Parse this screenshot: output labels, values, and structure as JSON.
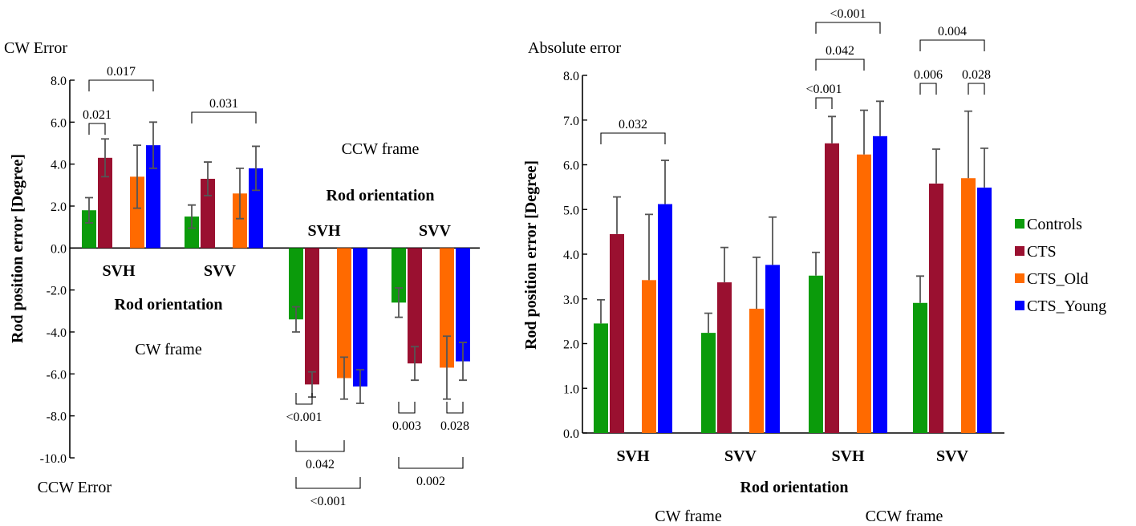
{
  "legend": [
    {
      "name": "Controls",
      "color": "#0b9b0b"
    },
    {
      "name": "CTS",
      "color": "#9a1030"
    },
    {
      "name": "CTS_Old",
      "color": "#ff6a00"
    },
    {
      "name": "CTS_Young",
      "color": "#0000ff"
    }
  ],
  "chart_data": [
    {
      "type": "bar",
      "corner_labels": {
        "top": "CW Error",
        "bottom": "CCW Error"
      },
      "ylabel": "Rod position error  [Degree]",
      "ylim": [
        -10,
        8
      ],
      "yticks": [
        "8.0",
        "6.0",
        "4.0",
        "2.0",
        "0.0",
        "-2.0",
        "-4.0",
        "-6.0",
        "-8.0",
        "-10.0"
      ],
      "frames": [
        {
          "frame": "CW frame",
          "axis_title": "Rod orientation"
        },
        {
          "frame": "CCW frame",
          "axis_title": "Rod orientation"
        }
      ],
      "groups": [
        {
          "label": "SVH",
          "values": [
            1.8,
            4.3,
            3.4,
            4.9
          ],
          "errors": [
            0.6,
            0.9,
            1.5,
            1.1
          ]
        },
        {
          "label": "SVV",
          "values": [
            1.5,
            3.3,
            2.6,
            3.8
          ],
          "errors": [
            0.55,
            0.8,
            1.2,
            1.05
          ]
        },
        {
          "label": "SVH",
          "values": [
            -3.4,
            -6.5,
            -6.2,
            -6.6
          ],
          "errors": [
            0.6,
            0.6,
            1.0,
            0.8
          ]
        },
        {
          "label": "SVV",
          "values": [
            -2.6,
            -5.5,
            -5.7,
            -5.4
          ],
          "errors": [
            0.7,
            0.8,
            1.5,
            0.9
          ]
        }
      ],
      "significance": [
        {
          "group": 0,
          "from": 0,
          "to": 1,
          "p": "0.021"
        },
        {
          "group": 0,
          "from": 0,
          "to": 3,
          "p": "0.017"
        },
        {
          "group": 1,
          "from": 0,
          "to": 3,
          "p": "0.031"
        },
        {
          "group": 2,
          "from": 0,
          "to": 1,
          "p": "<0.001"
        },
        {
          "group": 2,
          "from": 0,
          "to": 2,
          "p": "0.042"
        },
        {
          "group": 2,
          "from": 0,
          "to": 3,
          "p": "<0.001"
        },
        {
          "group": 3,
          "from": 0,
          "to": 1,
          "p": "0.003"
        },
        {
          "group": 3,
          "from": 2,
          "to": 3,
          "p": "0.028"
        },
        {
          "group": 3,
          "from": 0,
          "to": 3,
          "p": "0.002"
        }
      ]
    },
    {
      "type": "bar",
      "title": "Absolute error",
      "ylabel": "Rod position error  [Degree]",
      "xlabel": "Rod orientation",
      "ylim": [
        0,
        8
      ],
      "yticks": [
        "0.0",
        "1.0",
        "2.0",
        "3.0",
        "4.0",
        "5.0",
        "6.0",
        "7.0",
        "8.0"
      ],
      "frames": [
        "CW frame",
        "CCW frame"
      ],
      "groups": [
        {
          "label": "SVH",
          "values": [
            2.45,
            4.45,
            3.42,
            5.12
          ],
          "errors": [
            0.53,
            0.83,
            1.47,
            0.98
          ]
        },
        {
          "label": "SVV",
          "values": [
            2.24,
            3.37,
            2.78,
            3.76
          ],
          "errors": [
            0.44,
            0.78,
            1.15,
            1.07
          ]
        },
        {
          "label": "SVH",
          "values": [
            3.52,
            6.48,
            6.23,
            6.64
          ],
          "errors": [
            0.52,
            0.6,
            0.99,
            0.78
          ]
        },
        {
          "label": "SVV",
          "values": [
            2.91,
            5.58,
            5.7,
            5.49
          ],
          "errors": [
            0.6,
            0.77,
            1.5,
            0.88
          ]
        }
      ],
      "significance": [
        {
          "group": 0,
          "from": 0,
          "to": 3,
          "p": "0.032"
        },
        {
          "group": 2,
          "from": 0,
          "to": 1,
          "p": "<0.001"
        },
        {
          "group": 2,
          "from": 0,
          "to": 2,
          "p": "0.042"
        },
        {
          "group": 2,
          "from": 0,
          "to": 3,
          "p": "<0.001"
        },
        {
          "group": 3,
          "from": 0,
          "to": 1,
          "p": "0.006"
        },
        {
          "group": 3,
          "from": 2,
          "to": 3,
          "p": "0.028"
        },
        {
          "group": 3,
          "from": 0,
          "to": 3,
          "p": "0.004"
        }
      ]
    }
  ]
}
